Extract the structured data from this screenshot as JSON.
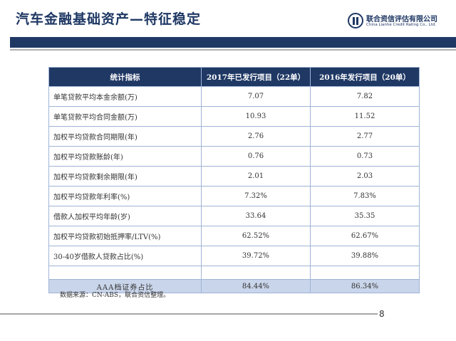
{
  "title": "汽车金融基础资产—特征稳定",
  "logo": {
    "name_cn": "联合资信评估有限公司",
    "name_en": "China Lianhe Credit Rating Co., Ltd."
  },
  "table": {
    "headers": [
      "统计指标",
      "2017年已发行项目（22单）",
      "2016年发行项目（20单）"
    ],
    "rows": [
      [
        "单笔贷款平均本金余额(万)",
        "7.07",
        "7.82"
      ],
      [
        "单笔贷款平均合同金额(万)",
        "10.93",
        "11.52"
      ],
      [
        "加权平均贷款合同期限(年)",
        "2.76",
        "2.77"
      ],
      [
        "加权平均贷款账龄(年)",
        "0.76",
        "0.73"
      ],
      [
        "加权平均贷款剩余期限(年)",
        "2.01",
        "2.03"
      ],
      [
        "加权平均贷款年利率(%)",
        "7.32%",
        "7.83%"
      ],
      [
        "借款人加权平均年龄(岁)",
        "33.64",
        "35.35"
      ],
      [
        "加权平均贷款初始抵押率/LTV(%)",
        "62.52%",
        "62.67%"
      ],
      [
        "30-40岁借款人贷款占比(%)",
        "39.72%",
        "39.88%"
      ]
    ],
    "total_row": [
      "AAA档证券占比",
      "84.44%",
      "86.34%"
    ]
  },
  "source_note": "数据来源：CN-ABS，联合资信整理。",
  "page_number": "8",
  "colors": {
    "navy": "#1f3864",
    "table_border": "#9fb4d6",
    "total_bg": "#c9d5ea"
  }
}
